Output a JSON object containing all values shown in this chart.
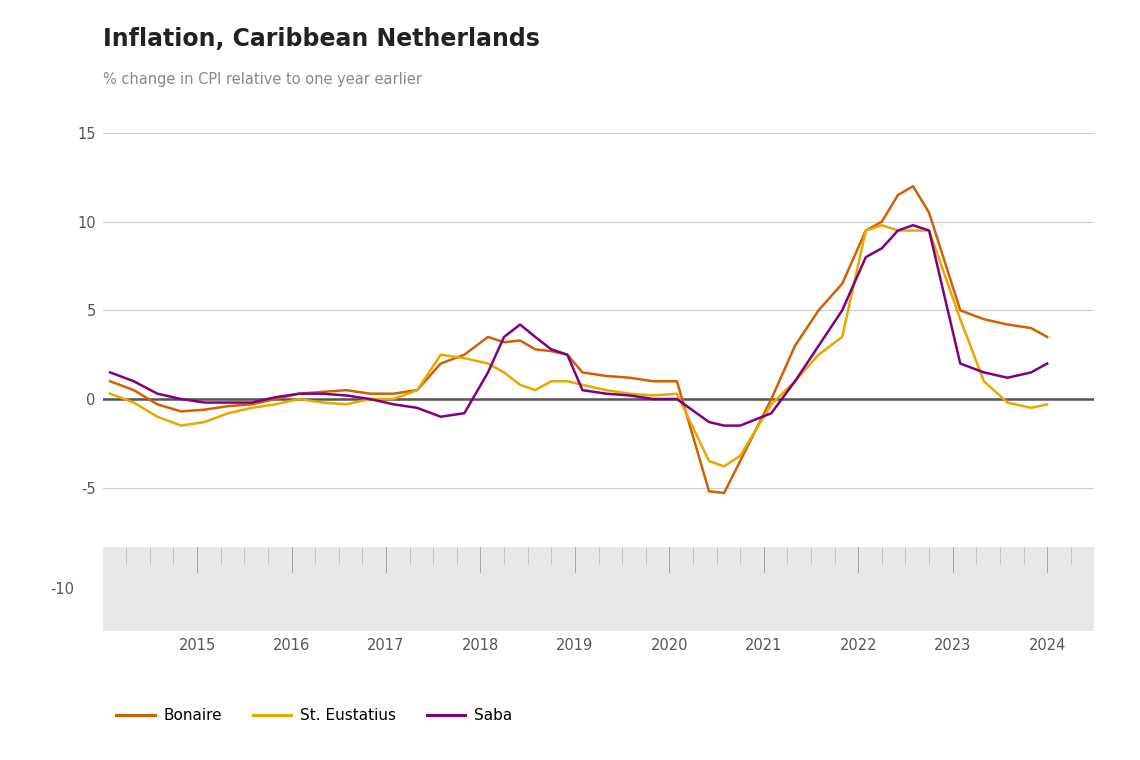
{
  "title": "Inflation, Caribbean Netherlands",
  "subtitle": "% change in CPI relative to one year earlier",
  "background_color": "#ffffff",
  "plot_background": "#ffffff",
  "grey_box_color": "#e8e8e8",
  "bonaire_color": "#d45f00",
  "eustatius_color": "#e8a800",
  "saba_color": "#800080",
  "years": [
    2015,
    2016,
    2017,
    2018,
    2019,
    2020,
    2021,
    2022,
    2023,
    2024
  ],
  "bonaire": {
    "x": [
      2014.08,
      2014.33,
      2014.58,
      2014.83,
      2015.08,
      2015.33,
      2015.58,
      2015.83,
      2016.08,
      2016.33,
      2016.58,
      2016.83,
      2017.08,
      2017.33,
      2017.58,
      2017.83,
      2018.08,
      2018.25,
      2018.42,
      2018.58,
      2018.75,
      2018.92,
      2019.08,
      2019.33,
      2019.58,
      2019.83,
      2020.08,
      2020.42,
      2020.58,
      2020.75,
      2021.08,
      2021.33,
      2021.58,
      2021.83,
      2022.08,
      2022.25,
      2022.42,
      2022.58,
      2022.75,
      2023.08,
      2023.33,
      2023.58,
      2023.83,
      2024.0
    ],
    "y": [
      1.0,
      0.5,
      -0.3,
      -0.7,
      -0.6,
      -0.4,
      -0.3,
      0.0,
      0.3,
      0.4,
      0.5,
      0.3,
      0.3,
      0.5,
      2.0,
      2.5,
      3.5,
      3.2,
      3.3,
      2.8,
      2.7,
      2.5,
      1.5,
      1.3,
      1.2,
      1.0,
      1.0,
      -5.2,
      -5.3,
      -3.5,
      0.0,
      3.0,
      5.0,
      6.5,
      9.5,
      10.0,
      11.5,
      12.0,
      10.5,
      5.0,
      4.5,
      4.2,
      4.0,
      3.5
    ]
  },
  "eustatius": {
    "x": [
      2014.08,
      2014.33,
      2014.58,
      2014.83,
      2015.08,
      2015.33,
      2015.58,
      2015.83,
      2016.08,
      2016.33,
      2016.58,
      2016.83,
      2017.08,
      2017.33,
      2017.58,
      2017.83,
      2018.08,
      2018.25,
      2018.42,
      2018.58,
      2018.75,
      2018.92,
      2019.08,
      2019.33,
      2019.58,
      2019.83,
      2020.08,
      2020.42,
      2020.58,
      2020.75,
      2021.08,
      2021.33,
      2021.58,
      2021.83,
      2022.08,
      2022.25,
      2022.42,
      2022.58,
      2022.75,
      2023.08,
      2023.33,
      2023.58,
      2023.83,
      2024.0
    ],
    "y": [
      0.3,
      -0.2,
      -1.0,
      -1.5,
      -1.3,
      -0.8,
      -0.5,
      -0.3,
      0.0,
      -0.2,
      -0.3,
      0.0,
      0.0,
      0.5,
      2.5,
      2.3,
      2.0,
      1.5,
      0.8,
      0.5,
      1.0,
      1.0,
      0.8,
      0.5,
      0.3,
      0.2,
      0.3,
      -3.5,
      -3.8,
      -3.2,
      -0.3,
      1.0,
      2.5,
      3.5,
      9.5,
      9.8,
      9.5,
      9.5,
      9.5,
      4.5,
      1.0,
      -0.2,
      -0.5,
      -0.3
    ]
  },
  "saba": {
    "x": [
      2014.08,
      2014.33,
      2014.58,
      2014.83,
      2015.08,
      2015.33,
      2015.58,
      2015.83,
      2016.08,
      2016.33,
      2016.58,
      2016.83,
      2017.08,
      2017.33,
      2017.58,
      2017.83,
      2018.08,
      2018.25,
      2018.42,
      2018.58,
      2018.75,
      2018.92,
      2019.08,
      2019.33,
      2019.58,
      2019.83,
      2020.08,
      2020.42,
      2020.58,
      2020.75,
      2021.08,
      2021.33,
      2021.58,
      2021.83,
      2022.08,
      2022.25,
      2022.42,
      2022.58,
      2022.75,
      2023.08,
      2023.33,
      2023.58,
      2023.83,
      2024.0
    ],
    "y": [
      1.5,
      1.0,
      0.3,
      0.0,
      -0.2,
      -0.2,
      -0.2,
      0.1,
      0.3,
      0.3,
      0.2,
      0.0,
      -0.3,
      -0.5,
      -1.0,
      -0.8,
      1.5,
      3.5,
      4.2,
      3.5,
      2.8,
      2.5,
      0.5,
      0.3,
      0.2,
      0.0,
      0.0,
      -1.3,
      -1.5,
      -1.5,
      -0.8,
      1.0,
      3.0,
      5.0,
      8.0,
      8.5,
      9.5,
      9.8,
      9.5,
      2.0,
      1.5,
      1.2,
      1.5,
      2.0
    ]
  },
  "legend_labels": [
    "Bonaire",
    "St. Eustatius",
    "Saba"
  ]
}
